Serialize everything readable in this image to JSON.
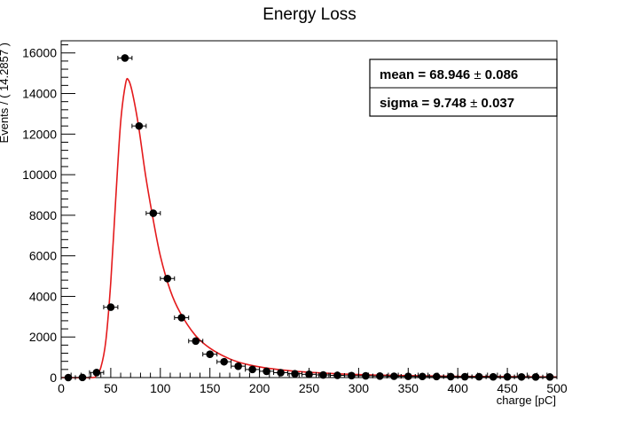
{
  "chart_data": {
    "type": "scatter",
    "title": "Energy Loss",
    "xlabel": "charge [pC]",
    "ylabel": "Events / ( 14.2857 )",
    "xlim": [
      0,
      500
    ],
    "ylim": [
      0,
      16600
    ],
    "xticks": [
      "0",
      "50",
      "100",
      "150",
      "200",
      "250",
      "300",
      "350",
      "400",
      "450",
      "500"
    ],
    "yticks": [
      "0",
      "2000",
      "4000",
      "6000",
      "8000",
      "10000",
      "12000",
      "14000",
      "16000"
    ],
    "bin_width": 14.2857,
    "grid": false,
    "points": {
      "name": "",
      "x": [
        7.14,
        21.43,
        35.71,
        50.0,
        64.29,
        78.57,
        92.86,
        107.14,
        121.43,
        135.71,
        150.0,
        164.29,
        178.57,
        192.86,
        207.14,
        221.43,
        235.71,
        250.0,
        264.29,
        278.57,
        292.86,
        307.14,
        321.43,
        335.71,
        350.0,
        364.29,
        378.57,
        392.86,
        407.14,
        421.43,
        435.71,
        450.0,
        464.29,
        478.57,
        492.86
      ],
      "y": [
        0,
        5,
        250,
        3470,
        15750,
        12400,
        8100,
        4880,
        2950,
        1800,
        1150,
        780,
        560,
        400,
        310,
        240,
        190,
        160,
        130,
        110,
        95,
        85,
        75,
        65,
        60,
        55,
        50,
        45,
        42,
        40,
        37,
        35,
        32,
        30,
        28
      ]
    },
    "fit_curve": {
      "name": "",
      "color": "#e41a1c",
      "x": [
        0,
        30,
        35,
        40,
        45,
        50,
        55,
        60,
        65,
        68,
        72,
        78,
        85,
        92,
        100,
        110,
        120,
        135,
        150,
        170,
        190,
        220,
        260,
        320,
        400,
        500
      ],
      "y": [
        0,
        0,
        80,
        500,
        1800,
        4700,
        8800,
        12600,
        14500,
        14650,
        14000,
        12400,
        10000,
        8000,
        6000,
        4300,
        3200,
        2100,
        1450,
        920,
        620,
        390,
        230,
        120,
        60,
        30
      ]
    },
    "stats": [
      {
        "label": "mean =",
        "value": "68.946",
        "error": "0.086"
      },
      {
        "label": "sigma =",
        "value": "9.748",
        "error": "0.037"
      }
    ],
    "pm_symbol": "±",
    "stats_box_position": "top-right",
    "marker_color": "#000000"
  }
}
